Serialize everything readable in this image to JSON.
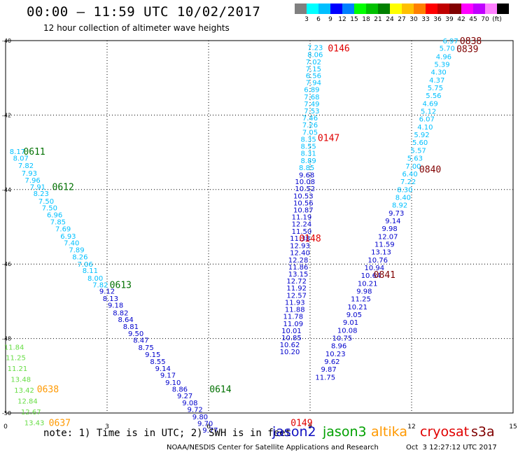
{
  "header": {
    "title": "00:00 – 11:59 UTC 10/02/2017",
    "subtitle": "12 hour collection of altimeter wave heights"
  },
  "legend": {
    "colors": [
      "#808080",
      "#00ffff",
      "#00bfff",
      "#0000ff",
      "#0080ff",
      "#00ff00",
      "#00c000",
      "#008000",
      "#ffff00",
      "#ffc000",
      "#ff8000",
      "#ff0000",
      "#c00000",
      "#800000",
      "#ff00ff",
      "#c000ff",
      "#ff80ff",
      "#000000"
    ],
    "labels": [
      "3",
      "6",
      "9",
      "12",
      "15",
      "18",
      "21",
      "24",
      "27",
      "30",
      "33",
      "36",
      "39",
      "42",
      "45",
      "70",
      "(ft)"
    ]
  },
  "footer": {
    "note": "note: 1) Time is in UTC; 2) SWH is in feet",
    "satellites": [
      {
        "name": "jason2",
        "color": "#1010c0"
      },
      {
        "name": "jason3",
        "color": "#00a000"
      },
      {
        "name": "altika",
        "color": "#ff9900"
      },
      {
        "name": "cryosat",
        "color": "#e00000"
      },
      {
        "name": "s3a",
        "color": "#800000"
      }
    ],
    "credit": "NOAA/NESDIS Center for Satellite Applications and Research",
    "timestamp": "Oct  3 12:27:12 UTC 2017"
  },
  "chart_data": {
    "type": "scatter",
    "title": "00:00 – 11:59 UTC 10/02/2017",
    "subtitle": "12 hour collection of altimeter wave heights",
    "xlim": [
      0,
      15
    ],
    "ylim": [
      -50,
      -40
    ],
    "x_ticks": [
      "0",
      "3",
      "6",
      "9",
      "12",
      "15"
    ],
    "y_ticks": [
      "-50",
      "-48",
      "-46",
      "-44",
      "-42",
      "-40"
    ],
    "grid": true,
    "units": "ft",
    "series": [
      {
        "name": "0611",
        "color": "#00c0ff",
        "time_labels": [
          {
            "text": "0611",
            "x": 0.85,
            "y": -42.97,
            "color": "#007000"
          }
        ],
        "points": [
          [
            0.35,
            -42.97,
            "8.17"
          ],
          [
            0.45,
            -43.15,
            "8.07"
          ],
          [
            0.6,
            -43.35,
            "7.82"
          ],
          [
            0.7,
            -43.55,
            "7.93"
          ],
          [
            0.8,
            -43.74,
            "7.96"
          ],
          [
            0.95,
            -43.92,
            "7.91"
          ],
          [
            1.05,
            -44.1,
            "8.23"
          ]
        ]
      },
      {
        "name": "0612",
        "color": "#00c0ff",
        "time_labels": [
          {
            "text": "0612",
            "x": 1.7,
            "y": -43.92,
            "color": "#007000"
          }
        ],
        "points": [
          [
            1.2,
            -44.3,
            "7.50"
          ],
          [
            1.3,
            -44.48,
            "7.50"
          ],
          [
            1.45,
            -44.67,
            "6.96"
          ],
          [
            1.55,
            -44.86,
            "7.85"
          ],
          [
            1.7,
            -45.05,
            "7.69"
          ],
          [
            1.85,
            -45.24,
            "6.93"
          ],
          [
            1.95,
            -45.42,
            "7.40"
          ],
          [
            2.1,
            -45.61,
            "7.89"
          ],
          [
            2.2,
            -45.8,
            "8.26"
          ],
          [
            2.35,
            -46.0,
            "7.06"
          ],
          [
            2.5,
            -46.17,
            "8.11"
          ],
          [
            2.65,
            -46.37,
            "8.00"
          ],
          [
            2.8,
            -46.55,
            "7.82"
          ]
        ]
      },
      {
        "name": "0613",
        "color": "#0000cc",
        "time_labels": [
          {
            "text": "0613",
            "x": 3.4,
            "y": -46.55,
            "color": "#007000"
          }
        ],
        "points": [
          [
            3.0,
            -46.72,
            "9.12"
          ],
          [
            3.1,
            -46.92,
            "8.13"
          ],
          [
            3.25,
            -47.1,
            "9.18"
          ],
          [
            3.4,
            -47.3,
            "8.82"
          ],
          [
            3.55,
            -47.48,
            "8.64"
          ],
          [
            3.7,
            -47.67,
            "8.81"
          ],
          [
            3.85,
            -47.86,
            "9.50"
          ],
          [
            4.0,
            -48.04,
            "8.47"
          ],
          [
            4.15,
            -48.23,
            "8.75"
          ],
          [
            4.35,
            -48.42,
            "9.15"
          ],
          [
            4.5,
            -48.61,
            "8.55"
          ],
          [
            4.65,
            -48.8,
            "9.14"
          ],
          [
            4.8,
            -48.98,
            "9.17"
          ],
          [
            4.95,
            -49.17,
            "9.10"
          ],
          [
            5.15,
            -49.35,
            "8.86"
          ],
          [
            5.3,
            -49.53,
            "9.27"
          ],
          [
            5.45,
            -49.72,
            "9.08"
          ],
          [
            5.6,
            -49.9,
            "9.72"
          ],
          [
            5.75,
            -50.09,
            "9.80"
          ],
          [
            5.9,
            -50.27,
            "9.70"
          ],
          [
            6.05,
            -50.45,
            "9.77"
          ]
        ]
      },
      {
        "name": "0614",
        "color": "#007000",
        "time_labels": [
          {
            "text": "0614",
            "x": 6.35,
            "y": -49.35,
            "color": "#007000"
          }
        ],
        "points": []
      },
      {
        "name": "0638",
        "color": "#66dd44",
        "time_labels": [
          {
            "text": "0638",
            "x": 1.25,
            "y": -49.35,
            "color": "#ff9900"
          }
        ],
        "points": [
          [
            0.25,
            -48.22,
            "11.84"
          ],
          [
            0.3,
            -48.51,
            "11.25"
          ],
          [
            0.35,
            -48.8,
            "11.21"
          ],
          [
            0.45,
            -49.09,
            "13.48"
          ],
          [
            0.55,
            -49.38,
            "13.42"
          ],
          [
            0.65,
            -49.67,
            "12.84"
          ],
          [
            0.75,
            -49.96,
            "12.67"
          ],
          [
            0.85,
            -50.25,
            "13.43"
          ]
        ]
      },
      {
        "name": "0637",
        "color": "#ff9900",
        "time_labels": [
          {
            "text": "0637",
            "x": 1.6,
            "y": -50.25,
            "color": "#ff9900"
          }
        ],
        "points": []
      },
      {
        "name": "0146",
        "color": "#00c0ff",
        "time_labels": [
          {
            "text": "0146",
            "x": 9.85,
            "y": -40.2,
            "color": "#e00000"
          }
        ],
        "points": [
          [
            9.15,
            -40.18,
            "7.23"
          ],
          [
            9.15,
            -40.37,
            "8.06"
          ],
          [
            9.1,
            -40.56,
            "7.02"
          ],
          [
            9.1,
            -40.75,
            "7.15"
          ],
          [
            9.1,
            -40.93,
            "6.56"
          ],
          [
            9.1,
            -41.12,
            "7.94"
          ],
          [
            9.05,
            -41.31,
            "6.89"
          ],
          [
            9.05,
            -41.5,
            "7.68"
          ],
          [
            9.05,
            -41.69,
            "7.49"
          ],
          [
            9.05,
            -41.88,
            "7.53"
          ],
          [
            9.0,
            -42.07,
            "7.46"
          ],
          [
            9.0,
            -42.26,
            "7.26"
          ],
          [
            9.0,
            -42.45,
            "7.05"
          ],
          [
            8.95,
            -42.64,
            "8.35"
          ],
          [
            8.95,
            -42.83,
            "8.55"
          ],
          [
            8.95,
            -43.02,
            "8.31"
          ],
          [
            8.95,
            -43.21,
            "8.89"
          ],
          [
            8.9,
            -43.4,
            "8.85"
          ]
        ]
      },
      {
        "name": "0147",
        "color": "#0000cc",
        "time_labels": [
          {
            "text": "0147",
            "x": 9.55,
            "y": -42.6,
            "color": "#e00000"
          }
        ],
        "points": [
          [
            8.9,
            -43.6,
            "9.68"
          ],
          [
            8.85,
            -43.78,
            "10.08"
          ],
          [
            8.85,
            -43.97,
            "10.52"
          ],
          [
            8.8,
            -44.16,
            "10.53"
          ],
          [
            8.8,
            -44.35,
            "10.56"
          ],
          [
            8.8,
            -44.54,
            "10.87"
          ],
          [
            8.75,
            -44.73,
            "11.19"
          ],
          [
            8.75,
            -44.92,
            "12.24"
          ],
          [
            8.75,
            -45.11,
            "11.50"
          ],
          [
            8.7,
            -45.3,
            "11.38"
          ]
        ]
      },
      {
        "name": "0148",
        "color": "#0000cc",
        "time_labels": [
          {
            "text": "0148",
            "x": 9.0,
            "y": -45.3,
            "color": "#e00000"
          }
        ],
        "points": [
          [
            8.7,
            -45.5,
            "12.93"
          ],
          [
            8.7,
            -45.69,
            "12.40"
          ],
          [
            8.65,
            -45.88,
            "12.28"
          ],
          [
            8.65,
            -46.07,
            "11.86"
          ],
          [
            8.65,
            -46.26,
            "13.15"
          ],
          [
            8.6,
            -46.45,
            "12.72"
          ],
          [
            8.6,
            -46.64,
            "11.92"
          ],
          [
            8.6,
            -46.83,
            "12.57"
          ],
          [
            8.55,
            -47.02,
            "11.93"
          ],
          [
            8.55,
            -47.21,
            "11.88"
          ],
          [
            8.5,
            -47.4,
            "11.78"
          ],
          [
            8.5,
            -47.59,
            "11.09"
          ],
          [
            8.45,
            -47.78,
            "10.01"
          ],
          [
            8.45,
            -47.97,
            "10.85"
          ],
          [
            8.4,
            -48.16,
            "10.62"
          ],
          [
            8.4,
            -48.35,
            "10.20"
          ]
        ]
      },
      {
        "name": "0149",
        "color": "#e00000",
        "time_labels": [
          {
            "text": "0149",
            "x": 8.75,
            "y": -50.25,
            "color": "#e00000"
          }
        ],
        "points": []
      },
      {
        "name": "0838",
        "color": "#00c0ff",
        "time_labels": [
          {
            "text": "0838",
            "x": 13.75,
            "y": -40.0,
            "color": "#800000"
          },
          {
            "text": "0839",
            "x": 13.65,
            "y": -40.22,
            "color": "#800000"
          }
        ],
        "points": [
          [
            13.15,
            -40.0,
            "6.97"
          ],
          [
            13.05,
            -40.2,
            "5.70"
          ],
          [
            12.95,
            -40.42,
            "4.96"
          ],
          [
            12.9,
            -40.63,
            "5.39"
          ],
          [
            12.8,
            -40.84,
            "4.30"
          ],
          [
            12.75,
            -41.05,
            "4.37"
          ],
          [
            12.7,
            -41.26,
            "5.75"
          ],
          [
            12.65,
            -41.47,
            "5.56"
          ],
          [
            12.55,
            -41.68,
            "4.69"
          ],
          [
            12.5,
            -41.89,
            "5.12"
          ],
          [
            12.45,
            -42.1,
            "6.07"
          ],
          [
            12.4,
            -42.31,
            "4.10"
          ],
          [
            12.3,
            -42.52,
            "5.92"
          ],
          [
            12.25,
            -42.73,
            "5.60"
          ],
          [
            12.2,
            -42.94,
            "5.57"
          ],
          [
            12.1,
            -43.15,
            "5.63"
          ],
          [
            12.05,
            -43.36,
            "7.00"
          ],
          [
            11.95,
            -43.57,
            "6.40"
          ],
          [
            11.9,
            -43.78,
            "7.22"
          ],
          [
            11.8,
            -43.99,
            "8.30"
          ],
          [
            11.75,
            -44.2,
            "8.40"
          ],
          [
            11.65,
            -44.41,
            "8.92"
          ]
        ]
      },
      {
        "name": "0840",
        "color": "#0000cc",
        "time_labels": [
          {
            "text": "0840",
            "x": 12.55,
            "y": -43.45,
            "color": "#800000"
          }
        ],
        "points": [
          [
            11.55,
            -44.62,
            "9.73"
          ],
          [
            11.45,
            -44.83,
            "9.14"
          ],
          [
            11.35,
            -45.04,
            "9.98"
          ],
          [
            11.3,
            -45.25,
            "12.07"
          ],
          [
            11.2,
            -45.46,
            "11.59"
          ],
          [
            11.1,
            -45.67,
            "13.13"
          ],
          [
            11.0,
            -45.88,
            "10.76"
          ],
          [
            10.9,
            -46.09,
            "10.94"
          ],
          [
            10.8,
            -46.3,
            "10.64"
          ],
          [
            10.7,
            -46.51,
            "10.21"
          ],
          [
            10.6,
            -46.72,
            "9.98"
          ],
          [
            10.5,
            -46.93,
            "11.25"
          ],
          [
            10.4,
            -47.14,
            "10.21"
          ],
          [
            10.3,
            -47.35,
            "9.05"
          ],
          [
            10.2,
            -47.56,
            "9.01"
          ],
          [
            10.1,
            -47.77,
            "10.08"
          ],
          [
            9.95,
            -47.98,
            "10.75"
          ],
          [
            9.85,
            -48.19,
            "8.96"
          ],
          [
            9.75,
            -48.4,
            "10.23"
          ],
          [
            9.65,
            -48.61,
            "9.62"
          ],
          [
            9.55,
            -48.82,
            "9.87"
          ],
          [
            9.45,
            -49.03,
            "11.75"
          ]
        ]
      },
      {
        "name": "0841",
        "color": "#800000",
        "time_labels": [
          {
            "text": "0841",
            "x": 11.2,
            "y": -46.28,
            "color": "#800000"
          }
        ],
        "points": []
      }
    ]
  }
}
